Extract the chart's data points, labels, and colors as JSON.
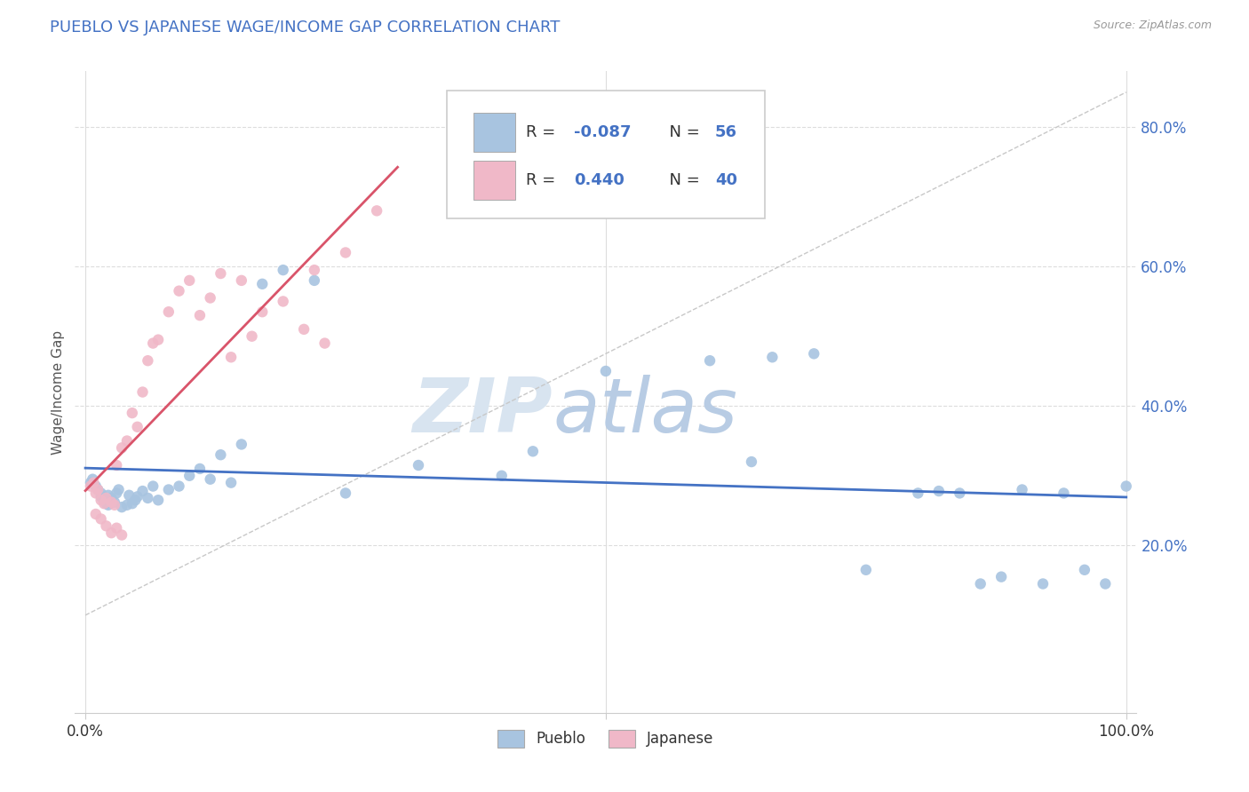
{
  "title": "PUEBLO VS JAPANESE WAGE/INCOME GAP CORRELATION CHART",
  "source": "Source: ZipAtlas.com",
  "ylabel": "Wage/Income Gap",
  "xlim": [
    -0.01,
    1.01
  ],
  "ylim": [
    -0.04,
    0.88
  ],
  "yticks": [
    0.2,
    0.4,
    0.6,
    0.8
  ],
  "yticklabels": [
    "20.0%",
    "40.0%",
    "60.0%",
    "80.0%"
  ],
  "xtick_positions": [
    0.0,
    0.5,
    1.0
  ],
  "xticklabels": [
    "0.0%",
    "",
    "100.0%"
  ],
  "legend_r_blue": "-0.087",
  "legend_n_blue": "56",
  "legend_r_pink": "0.440",
  "legend_n_pink": "40",
  "blue_scatter_color": "#a8c4e0",
  "pink_scatter_color": "#f0b8c8",
  "blue_line_color": "#4472c4",
  "pink_line_color": "#d9546a",
  "diag_line_color": "#c8c8c8",
  "title_color": "#4472c4",
  "watermark_color": "#d8e4f0",
  "tick_label_color": "#4472c4",
  "pueblo_x": [
    0.005,
    0.007,
    0.01,
    0.012,
    0.015,
    0.015,
    0.018,
    0.02,
    0.022,
    0.022,
    0.025,
    0.028,
    0.03,
    0.032,
    0.035,
    0.04,
    0.042,
    0.045,
    0.048,
    0.05,
    0.055,
    0.06,
    0.065,
    0.07,
    0.08,
    0.09,
    0.1,
    0.11,
    0.12,
    0.13,
    0.14,
    0.15,
    0.17,
    0.19,
    0.22,
    0.25,
    0.32,
    0.4,
    0.43,
    0.5,
    0.6,
    0.64,
    0.66,
    0.7,
    0.75,
    0.8,
    0.82,
    0.84,
    0.86,
    0.88,
    0.9,
    0.92,
    0.94,
    0.96,
    0.98,
    1.0
  ],
  "pueblo_y": [
    0.29,
    0.295,
    0.285,
    0.28,
    0.275,
    0.27,
    0.265,
    0.26,
    0.258,
    0.272,
    0.268,
    0.262,
    0.275,
    0.28,
    0.255,
    0.258,
    0.272,
    0.26,
    0.265,
    0.27,
    0.278,
    0.268,
    0.285,
    0.265,
    0.28,
    0.285,
    0.3,
    0.31,
    0.295,
    0.33,
    0.29,
    0.345,
    0.575,
    0.595,
    0.58,
    0.275,
    0.315,
    0.3,
    0.335,
    0.45,
    0.465,
    0.32,
    0.47,
    0.475,
    0.165,
    0.275,
    0.278,
    0.275,
    0.145,
    0.155,
    0.28,
    0.145,
    0.275,
    0.165,
    0.145,
    0.285
  ],
  "japanese_x": [
    0.005,
    0.008,
    0.01,
    0.012,
    0.015,
    0.018,
    0.02,
    0.025,
    0.028,
    0.03,
    0.035,
    0.04,
    0.045,
    0.05,
    0.055,
    0.06,
    0.065,
    0.07,
    0.08,
    0.09,
    0.1,
    0.11,
    0.12,
    0.13,
    0.14,
    0.15,
    0.16,
    0.17,
    0.19,
    0.21,
    0.22,
    0.23,
    0.25,
    0.28,
    0.01,
    0.015,
    0.02,
    0.025,
    0.03,
    0.035
  ],
  "japanese_y": [
    0.285,
    0.29,
    0.275,
    0.28,
    0.265,
    0.26,
    0.268,
    0.262,
    0.258,
    0.315,
    0.34,
    0.35,
    0.39,
    0.37,
    0.42,
    0.465,
    0.49,
    0.495,
    0.535,
    0.565,
    0.58,
    0.53,
    0.555,
    0.59,
    0.47,
    0.58,
    0.5,
    0.535,
    0.55,
    0.51,
    0.595,
    0.49,
    0.62,
    0.68,
    0.245,
    0.238,
    0.228,
    0.218,
    0.225,
    0.215
  ],
  "figsize": [
    14.06,
    8.92
  ],
  "dpi": 100
}
